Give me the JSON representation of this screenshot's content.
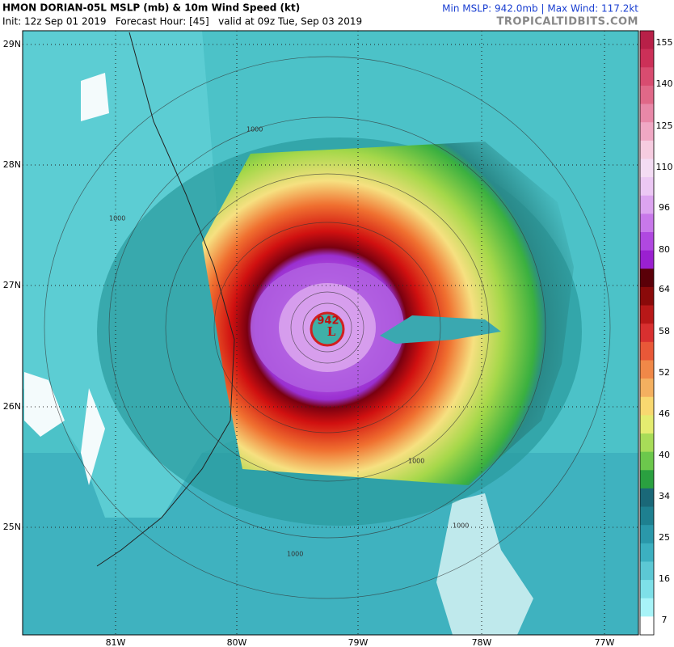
{
  "header": {
    "title": "HMON DORIAN-05L MSLP (mb) & 10m Wind Speed (kt)",
    "init": "Init: 12z Sep 01 2019   Forecast Hour: [45]   valid at 09z Tue, Sep 03 2019",
    "stats": "Min MSLP: 942.0mb | Max Wind: 117.2kt",
    "site": "TROPICALTIDBITS.COM"
  },
  "map": {
    "lat_labels": [
      "29N",
      "28N",
      "27N",
      "26N",
      "25N"
    ],
    "lon_labels": [
      "81W",
      "80W",
      "79W",
      "78W",
      "77W"
    ],
    "center_pressure": "942",
    "low_symbol": "L",
    "contour_labels": [
      "1000",
      "1000",
      "1000",
      "1000",
      "1000"
    ]
  },
  "colorbar": {
    "labels": [
      "155",
      "140",
      "125",
      "110",
      "96",
      "80",
      "64",
      "58",
      "52",
      "46",
      "40",
      "34",
      "25",
      "16",
      "7"
    ]
  }
}
